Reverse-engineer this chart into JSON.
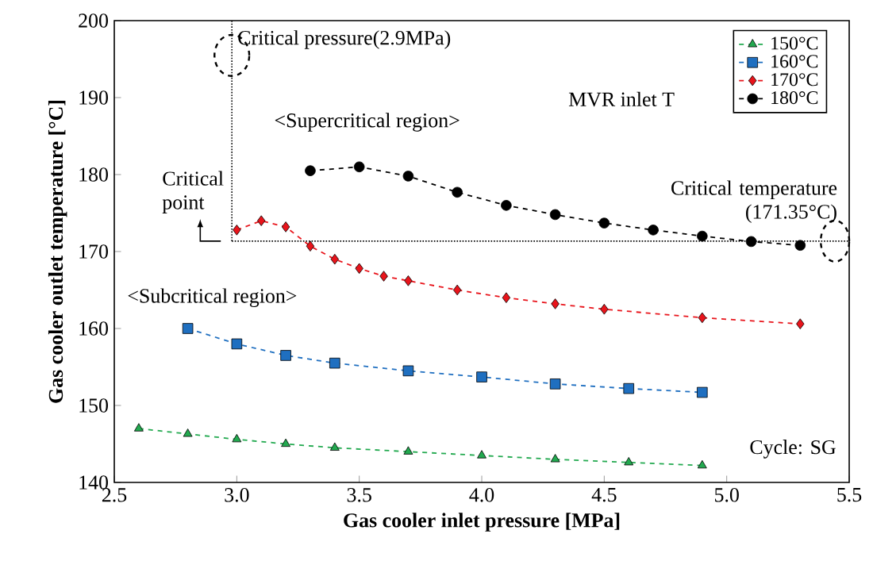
{
  "chart_data": {
    "type": "line",
    "xlabel": "Gas cooler inlet pressure [MPa]",
    "ylabel": "Gas cooler outlet temperature [°C]",
    "legend_title": "MVR inlet T",
    "legend": "top right",
    "line_style": "dashed",
    "grid": false,
    "xlim": [
      2.5,
      5.5
    ],
    "ylim": [
      140,
      200
    ],
    "xticks": [
      2.5,
      {
        "value": 3,
        "label": "3.0"
      },
      3.5,
      {
        "value": 4,
        "label": "4.0"
      },
      4.5,
      {
        "value": 5,
        "label": "5.0"
      },
      5.5
    ],
    "yticks": [
      140,
      150,
      160,
      170,
      180,
      190,
      200
    ],
    "series": [
      {
        "name": "150°C",
        "color": "#22a94f",
        "marker": "triangle",
        "x": [
          2.6,
          2.8,
          3.0,
          3.2,
          3.4,
          3.7,
          4.0,
          4.3,
          4.6,
          4.9
        ],
        "values": [
          147,
          146.3,
          145.6,
          145,
          144.5,
          144,
          143.5,
          143,
          142.6,
          142.2
        ]
      },
      {
        "name": "160°C",
        "color": "#1f6fc0",
        "marker": "square",
        "x": [
          2.8,
          3.0,
          3.2,
          3.4,
          3.7,
          4.0,
          4.3,
          4.6,
          4.9
        ],
        "values": [
          160,
          158,
          156.5,
          155.5,
          154.5,
          153.7,
          152.8,
          152.2,
          151.7
        ]
      },
      {
        "name": "170°C",
        "color": "#e8141b",
        "marker": "diamond",
        "x": [
          3.0,
          3.1,
          3.2,
          3.3,
          3.4,
          3.5,
          3.6,
          3.7,
          3.9,
          4.1,
          4.3,
          4.5,
          4.9,
          5.3
        ],
        "values": [
          172.8,
          174,
          173.2,
          170.7,
          169,
          167.8,
          166.8,
          166.2,
          165,
          164,
          163.2,
          162.5,
          161.4,
          160.6
        ]
      },
      {
        "name": "180°C",
        "color": "#000000",
        "marker": "circle",
        "x": [
          3.3,
          3.5,
          3.7,
          3.9,
          4.1,
          4.3,
          4.5,
          4.7,
          4.9,
          5.1,
          5.3
        ],
        "values": [
          180.5,
          181,
          179.8,
          177.7,
          176,
          174.8,
          173.7,
          172.8,
          172,
          171.3,
          170.8
        ]
      }
    ],
    "ref_lines": [
      {
        "axis": "x",
        "value": 2.98,
        "label": "Critical pressure(2.9MPa)",
        "line_style": "dotted",
        "color": "#000000"
      },
      {
        "axis": "y",
        "value": 171.35,
        "label": "Critical temperature (171.35°C)",
        "line_style": "dotted",
        "color": "#000000"
      }
    ],
    "annotations": [
      "<Supercritical region>",
      "<Subcritical region>",
      {
        "text": "Critical point",
        "x": 2.98,
        "y": 171.35
      },
      "Cycle: SG"
    ]
  }
}
